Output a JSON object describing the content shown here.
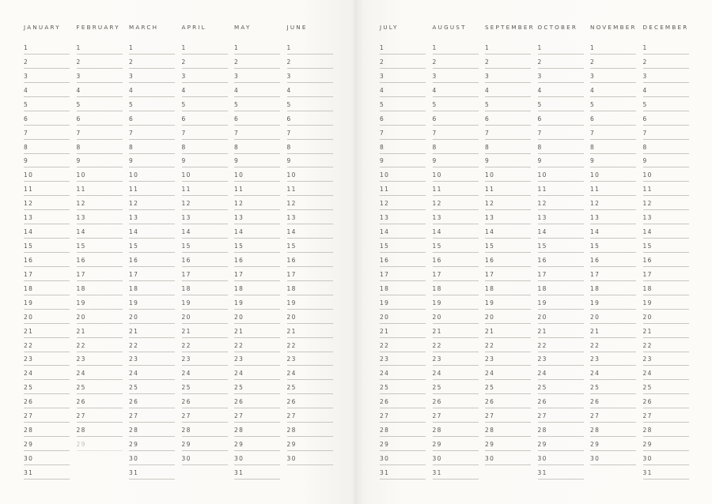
{
  "pages": [
    {
      "months": [
        {
          "name": "JANUARY",
          "days": 31
        },
        {
          "name": "FEBRUARY",
          "days": 29,
          "faded_days": [
            29
          ]
        },
        {
          "name": "MARCH",
          "days": 31
        },
        {
          "name": "APRIL",
          "days": 30
        },
        {
          "name": "MAY",
          "days": 31
        },
        {
          "name": "JUNE",
          "days": 30
        }
      ]
    },
    {
      "months": [
        {
          "name": "JULY",
          "days": 31
        },
        {
          "name": "AUGUST",
          "days": 31
        },
        {
          "name": "SEPTEMBER",
          "days": 30
        },
        {
          "name": "OCTOBER",
          "days": 31
        },
        {
          "name": "NOVEMBER",
          "days": 30
        },
        {
          "name": "DECEMBER",
          "days": 31
        }
      ]
    }
  ],
  "colors": {
    "paper": "#fcfbf8",
    "text": "#5a5754",
    "rule": "#c9c6c1",
    "faded": "#c2bfba"
  }
}
